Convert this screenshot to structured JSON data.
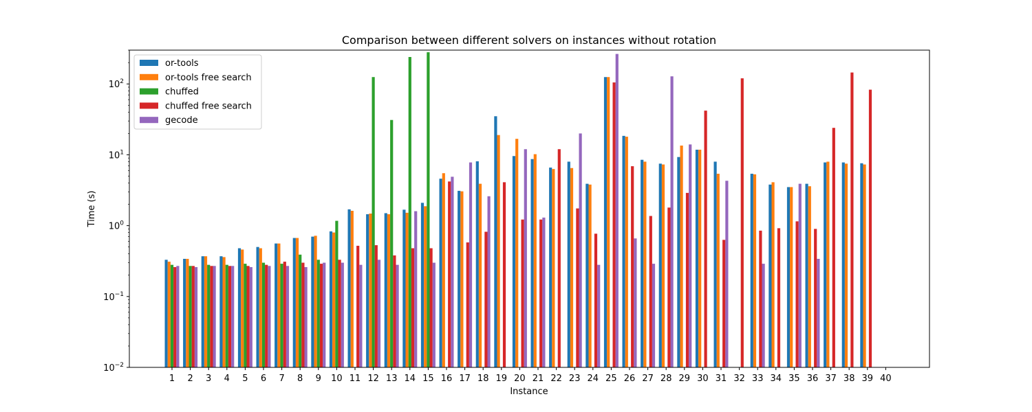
{
  "chart_data": {
    "type": "bar",
    "title": "Comparison between different solvers on instances without rotation",
    "xlabel": "Instance",
    "ylabel": "Time (s)",
    "yscale": "log",
    "ylim": [
      0.01,
      300
    ],
    "yticks": [
      0.01,
      0.1,
      1,
      10,
      100
    ],
    "ytick_labels": [
      {
        "base": "10",
        "exp": "−2"
      },
      {
        "base": "10",
        "exp": "−1"
      },
      {
        "base": "10",
        "exp": "0"
      },
      {
        "base": "10",
        "exp": "1"
      },
      {
        "base": "10",
        "exp": "2"
      }
    ],
    "legend_position": "top-left",
    "grid": false,
    "categories": [
      "1",
      "2",
      "3",
      "4",
      "5",
      "6",
      "7",
      "8",
      "9",
      "10",
      "11",
      "12",
      "13",
      "14",
      "15",
      "16",
      "17",
      "18",
      "19",
      "20",
      "21",
      "22",
      "23",
      "24",
      "25",
      "26",
      "27",
      "28",
      "29",
      "30",
      "31",
      "32",
      "33",
      "34",
      "35",
      "36",
      "37",
      "38",
      "39",
      "40"
    ],
    "series": [
      {
        "name": "or-tools",
        "color": "#1f77b4",
        "values": [
          0.33,
          0.34,
          0.37,
          0.37,
          0.48,
          0.5,
          0.56,
          0.67,
          0.7,
          0.83,
          1.7,
          1.45,
          1.5,
          1.68,
          2.1,
          4.6,
          3.1,
          8.1,
          35,
          9.6,
          8.7,
          6.6,
          8,
          3.9,
          125,
          18.5,
          8.5,
          7.5,
          9.3,
          11.8,
          8,
          null,
          5.4,
          3.8,
          3.5,
          3.9,
          7.8,
          7.8,
          7.6,
          null
        ]
      },
      {
        "name": "or-tools free search",
        "color": "#ff7f0e",
        "values": [
          0.31,
          0.34,
          0.37,
          0.36,
          0.46,
          0.48,
          0.56,
          0.67,
          0.72,
          0.8,
          1.62,
          1.48,
          1.45,
          1.52,
          1.88,
          5.5,
          3.05,
          3.9,
          19,
          16.8,
          10.2,
          6.3,
          6.5,
          3.8,
          125,
          18,
          8,
          7.3,
          13.5,
          11.8,
          5.4,
          null,
          5.3,
          4.1,
          3.5,
          3.6,
          8,
          7.5,
          7.3,
          null
        ]
      },
      {
        "name": "chuffed",
        "color": "#2ca02c",
        "values": [
          0.28,
          0.27,
          0.28,
          0.28,
          0.29,
          0.3,
          0.29,
          0.39,
          0.33,
          1.17,
          null,
          125,
          31,
          240,
          280,
          null,
          null,
          null,
          null,
          null,
          null,
          null,
          null,
          null,
          null,
          null,
          null,
          null,
          null,
          null,
          null,
          null,
          null,
          null,
          null,
          null,
          null,
          null,
          null,
          null
        ]
      },
      {
        "name": "chuffed free search",
        "color": "#d62728",
        "values": [
          0.26,
          0.27,
          0.27,
          0.27,
          0.27,
          0.28,
          0.31,
          0.3,
          0.29,
          0.33,
          0.52,
          0.53,
          0.38,
          0.48,
          0.48,
          4.2,
          0.58,
          0.82,
          4.1,
          1.22,
          1.22,
          12,
          1.75,
          0.77,
          105,
          6.9,
          1.37,
          1.8,
          2.9,
          42,
          0.63,
          120,
          0.85,
          0.92,
          1.15,
          0.9,
          24,
          145,
          83,
          null
        ]
      },
      {
        "name": "gecode",
        "color": "#9467bd",
        "values": [
          0.27,
          0.26,
          0.27,
          0.27,
          0.26,
          0.27,
          0.27,
          0.26,
          0.3,
          0.3,
          0.28,
          0.33,
          0.28,
          1.6,
          0.3,
          4.9,
          7.8,
          2.6,
          null,
          12,
          1.3,
          null,
          20,
          0.28,
          265,
          0.66,
          0.29,
          128,
          14,
          null,
          4.3,
          null,
          0.29,
          null,
          3.9,
          0.34,
          null,
          null,
          null,
          null
        ]
      }
    ]
  }
}
